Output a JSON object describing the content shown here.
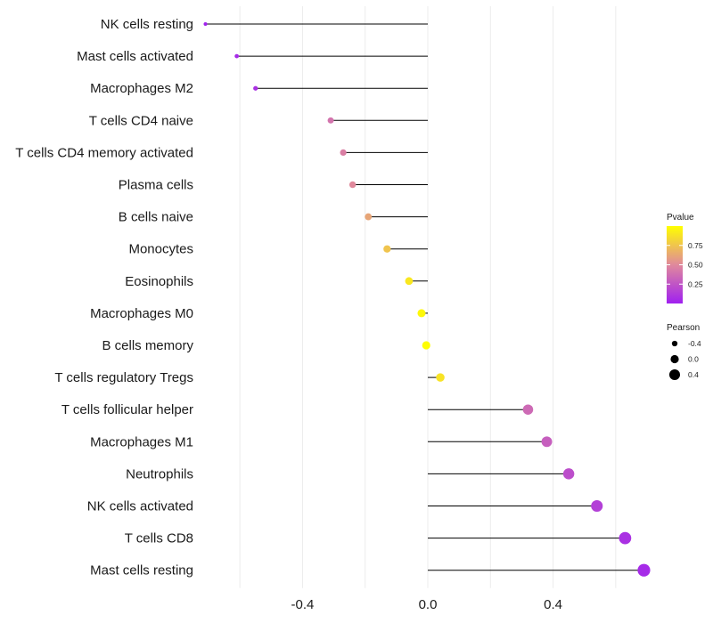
{
  "chart_data": {
    "type": "lollipop",
    "title": "",
    "xlabel": "",
    "ylabel": "",
    "xlim": [
      -0.72,
      0.72
    ],
    "x_ticks": [
      -0.4,
      0.0,
      0.4
    ],
    "x_tick_labels": [
      "-0.4",
      "0.0",
      "0.4"
    ],
    "grid": true,
    "categories": [
      "NK cells resting",
      "Mast cells activated",
      "Macrophages M2",
      "T cells CD4 naive",
      "T cells CD4 memory activated",
      "Plasma cells",
      "B cells naive",
      "Monocytes",
      "Eosinophils",
      "Macrophages M0",
      "B cells memory",
      "T cells regulatory  Tregs ",
      "T cells follicular helper",
      "Macrophages M1",
      "Neutrophils",
      "NK cells activated",
      "T cells CD8",
      "Mast cells resting"
    ],
    "pearson": [
      -0.71,
      -0.61,
      -0.55,
      -0.31,
      -0.27,
      -0.24,
      -0.19,
      -0.13,
      -0.06,
      -0.02,
      -0.005,
      0.04,
      0.32,
      0.38,
      0.45,
      0.54,
      0.63,
      0.69
    ],
    "pvalue": [
      0.01,
      0.05,
      0.08,
      0.4,
      0.45,
      0.5,
      0.62,
      0.75,
      0.9,
      0.97,
      0.99,
      0.88,
      0.35,
      0.3,
      0.22,
      0.15,
      0.08,
      0.05
    ],
    "legend_color": {
      "title": "Pvalue",
      "ticks": [
        0.25,
        0.5,
        0.75
      ],
      "tick_labels": [
        "0.25",
        "0.50",
        "0.75"
      ],
      "low_color": "#a020f0",
      "mid_color": "#e0899c",
      "high_color": "#ffff00",
      "range": [
        0.0,
        1.0
      ]
    },
    "legend_size": {
      "title": "Pearson",
      "ticks": [
        -0.4,
        0.0,
        0.4
      ],
      "tick_labels": [
        "-0.4",
        "0.0",
        "0.4"
      ]
    }
  }
}
